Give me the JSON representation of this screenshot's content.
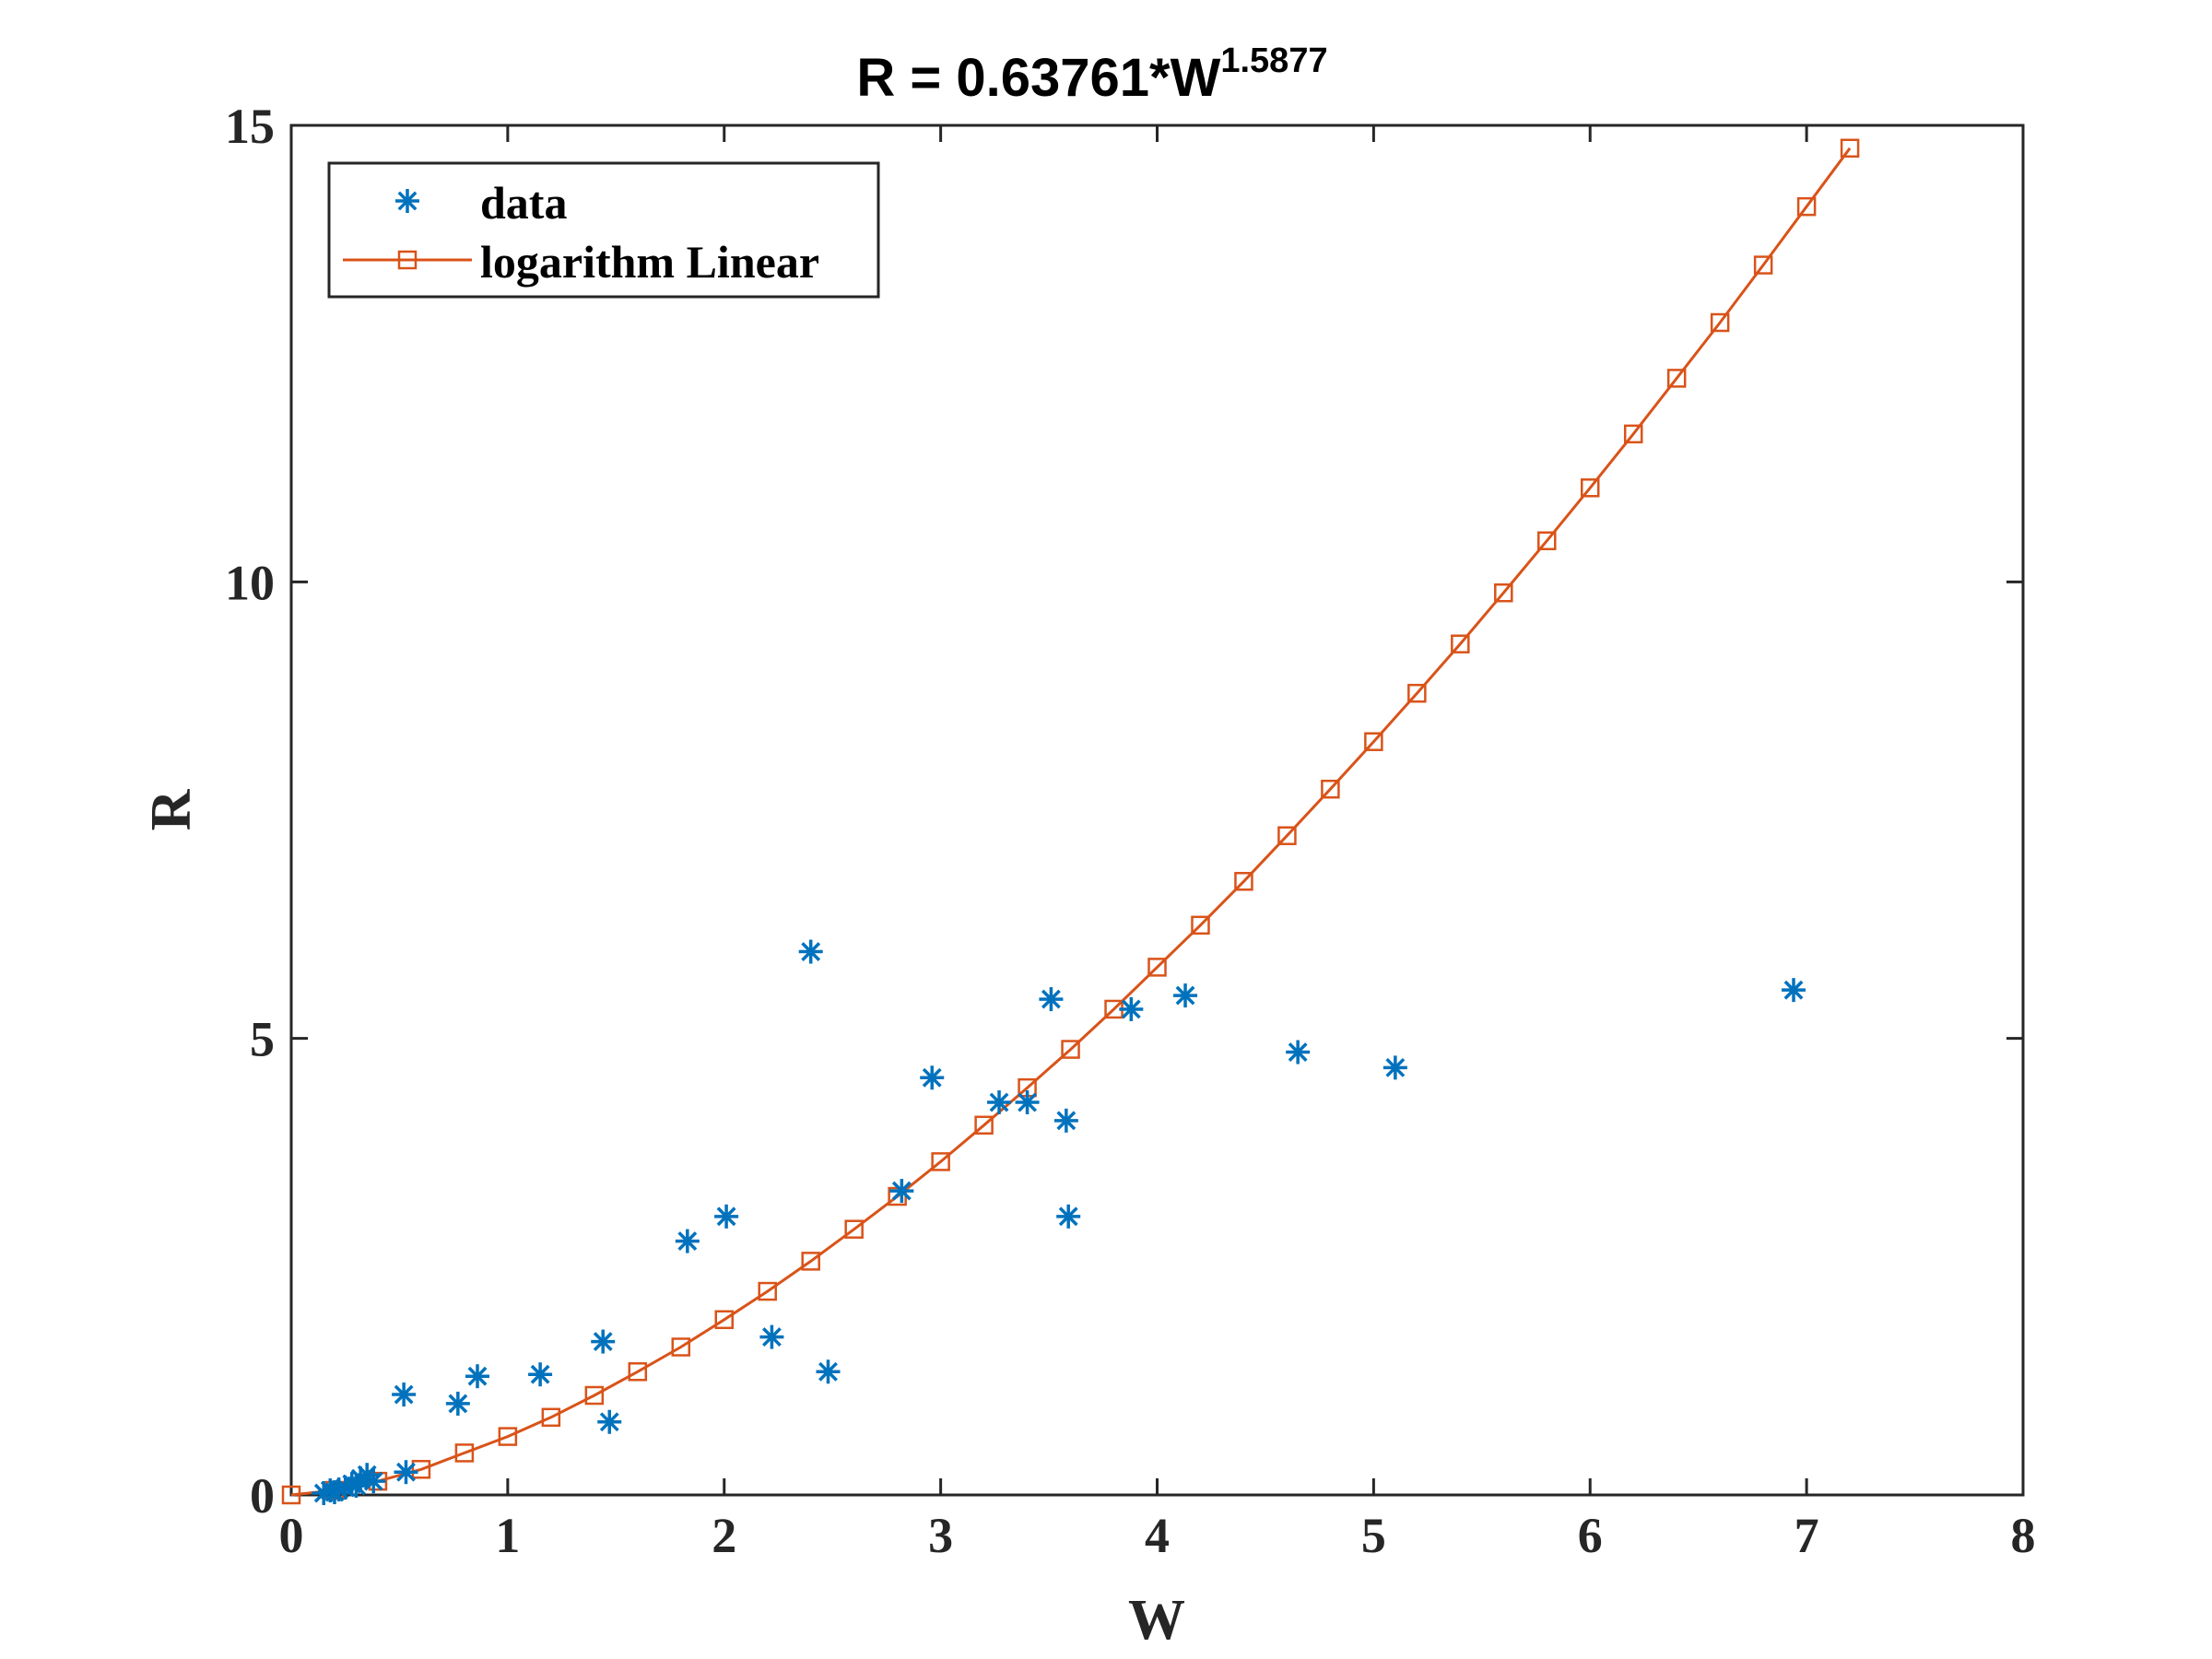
{
  "chart_data": {
    "type": "scatter",
    "title": "R = 0.63761*W",
    "title_superscript": "1.5877",
    "xlabel": "W",
    "ylabel": "R",
    "xlim": [
      0,
      8
    ],
    "ylim": [
      0,
      15
    ],
    "x_ticks": [
      "0",
      "1",
      "2",
      "3",
      "4",
      "5",
      "6",
      "7",
      "8"
    ],
    "y_ticks": [
      "0",
      "5",
      "10",
      "15"
    ],
    "grid": false,
    "legend_position": "top-left",
    "colors": {
      "data": "#0072BD",
      "fit": "#D95319",
      "axis": "#262626"
    },
    "series": [
      {
        "name": "data",
        "marker": "asterisk",
        "line": false,
        "points": [
          [
            0.15,
            0.02
          ],
          [
            0.18,
            0.05
          ],
          [
            0.2,
            0.03
          ],
          [
            0.22,
            0.06
          ],
          [
            0.25,
            0.08
          ],
          [
            0.28,
            0.12
          ],
          [
            0.3,
            0.1
          ],
          [
            0.32,
            0.18
          ],
          [
            0.35,
            0.22
          ],
          [
            0.38,
            0.15
          ],
          [
            0.52,
            1.1
          ],
          [
            0.53,
            0.25
          ],
          [
            0.77,
            1.0
          ],
          [
            0.86,
            1.3
          ],
          [
            1.15,
            1.32
          ],
          [
            1.44,
            1.68
          ],
          [
            1.47,
            0.8
          ],
          [
            1.83,
            2.78
          ],
          [
            2.01,
            3.05
          ],
          [
            2.22,
            1.73
          ],
          [
            2.4,
            5.95
          ],
          [
            2.48,
            1.35
          ],
          [
            2.82,
            3.33
          ],
          [
            2.96,
            4.57
          ],
          [
            3.27,
            4.3
          ],
          [
            3.4,
            4.3
          ],
          [
            3.51,
            5.43
          ],
          [
            3.58,
            4.1
          ],
          [
            3.59,
            3.05
          ],
          [
            3.88,
            5.32
          ],
          [
            4.13,
            5.47
          ],
          [
            4.65,
            4.85
          ],
          [
            5.1,
            4.68
          ],
          [
            6.94,
            5.53
          ]
        ]
      },
      {
        "name": "logarithm Linear",
        "marker": "square",
        "line": true,
        "points": [
          [
            0.0,
            0.0
          ],
          [
            0.2,
            0.05
          ],
          [
            0.4,
            0.15
          ],
          [
            0.6,
            0.28
          ],
          [
            0.8,
            0.46
          ],
          [
            1.0,
            0.64
          ],
          [
            1.2,
            0.85
          ],
          [
            1.4,
            1.09
          ],
          [
            1.6,
            1.35
          ],
          [
            1.8,
            1.62
          ],
          [
            2.0,
            1.92
          ],
          [
            2.2,
            2.23
          ],
          [
            2.4,
            2.56
          ],
          [
            2.6,
            2.91
          ],
          [
            2.8,
            3.27
          ],
          [
            3.0,
            3.65
          ],
          [
            3.2,
            4.05
          ],
          [
            3.4,
            4.46
          ],
          [
            3.6,
            4.88
          ],
          [
            3.8,
            5.32
          ],
          [
            4.0,
            5.78
          ],
          [
            4.2,
            6.24
          ],
          [
            4.4,
            6.72
          ],
          [
            4.6,
            7.22
          ],
          [
            4.8,
            7.73
          ],
          [
            5.0,
            8.25
          ],
          [
            5.2,
            8.78
          ],
          [
            5.4,
            9.32
          ],
          [
            5.6,
            9.88
          ],
          [
            5.8,
            10.45
          ],
          [
            6.0,
            11.03
          ],
          [
            6.2,
            11.62
          ],
          [
            6.4,
            12.23
          ],
          [
            6.6,
            12.84
          ],
          [
            6.8,
            13.47
          ],
          [
            7.0,
            14.11
          ],
          [
            7.2,
            14.75
          ]
        ]
      }
    ]
  }
}
